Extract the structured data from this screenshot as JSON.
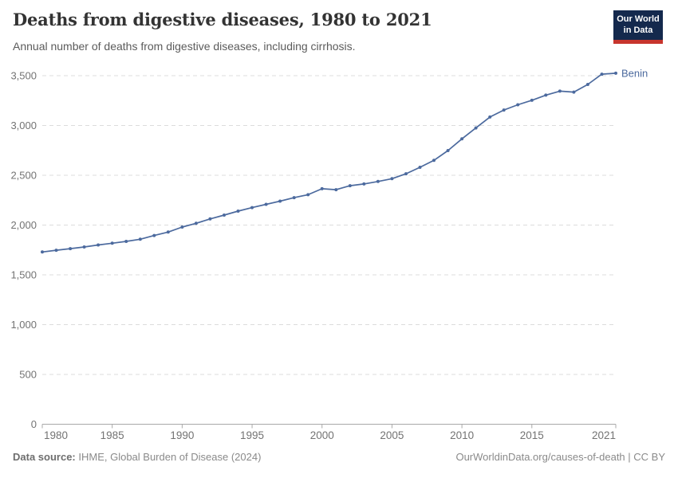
{
  "header": {
    "title": "Deaths from digestive diseases, 1980 to 2021",
    "subtitle": "Annual number of deaths from digestive diseases, including cirrhosis."
  },
  "logo": {
    "line1": "Our World",
    "line2": "in Data"
  },
  "footer": {
    "data_source_label": "Data source:",
    "data_source_value": " IHME, Global Burden of Disease (2024)",
    "attribution": "OurWorldinData.org/causes-of-death | CC BY"
  },
  "colors": {
    "line": "#4c6a9e",
    "entity_label": "#4c6a9e",
    "grid": "#dcdcdc",
    "axis": "#a8a8a8",
    "tick_label": "#737373",
    "logo_bg": "#14294d",
    "logo_stripe": "#c7352d"
  },
  "chart_data": {
    "type": "line",
    "title": "Deaths from digestive diseases, 1980 to 2021",
    "subtitle": "Annual number of deaths from digestive diseases, including cirrhosis.",
    "entity": "Benin",
    "grid": "horizontal-dashed",
    "legend": "line-end-label",
    "xlabel": "",
    "ylabel": "",
    "xlim": [
      1980,
      2021
    ],
    "ylim": [
      0,
      3500
    ],
    "xticks": [
      1980,
      1985,
      1990,
      1995,
      2000,
      2005,
      2010,
      2015,
      2021
    ],
    "yticks": [
      0,
      500,
      1000,
      1500,
      2000,
      2500,
      3000,
      3500
    ],
    "x": [
      1980,
      1981,
      1982,
      1983,
      1984,
      1985,
      1986,
      1987,
      1988,
      1989,
      1990,
      1991,
      1992,
      1993,
      1994,
      1995,
      1996,
      1997,
      1998,
      1999,
      2000,
      2001,
      2002,
      2003,
      2004,
      2005,
      2006,
      2007,
      2008,
      2009,
      2010,
      2011,
      2012,
      2013,
      2014,
      2015,
      2016,
      2017,
      2018,
      2019,
      2020,
      2021
    ],
    "series": [
      {
        "name": "Benin",
        "values": [
          1730,
          1747,
          1763,
          1780,
          1800,
          1818,
          1836,
          1858,
          1895,
          1930,
          1980,
          2018,
          2062,
          2100,
          2140,
          2175,
          2208,
          2240,
          2275,
          2305,
          2365,
          2355,
          2395,
          2413,
          2438,
          2466,
          2515,
          2580,
          2650,
          2748,
          2866,
          2975,
          3085,
          3155,
          3208,
          3253,
          3305,
          3345,
          3335,
          3412,
          3515,
          3525
        ]
      }
    ]
  }
}
